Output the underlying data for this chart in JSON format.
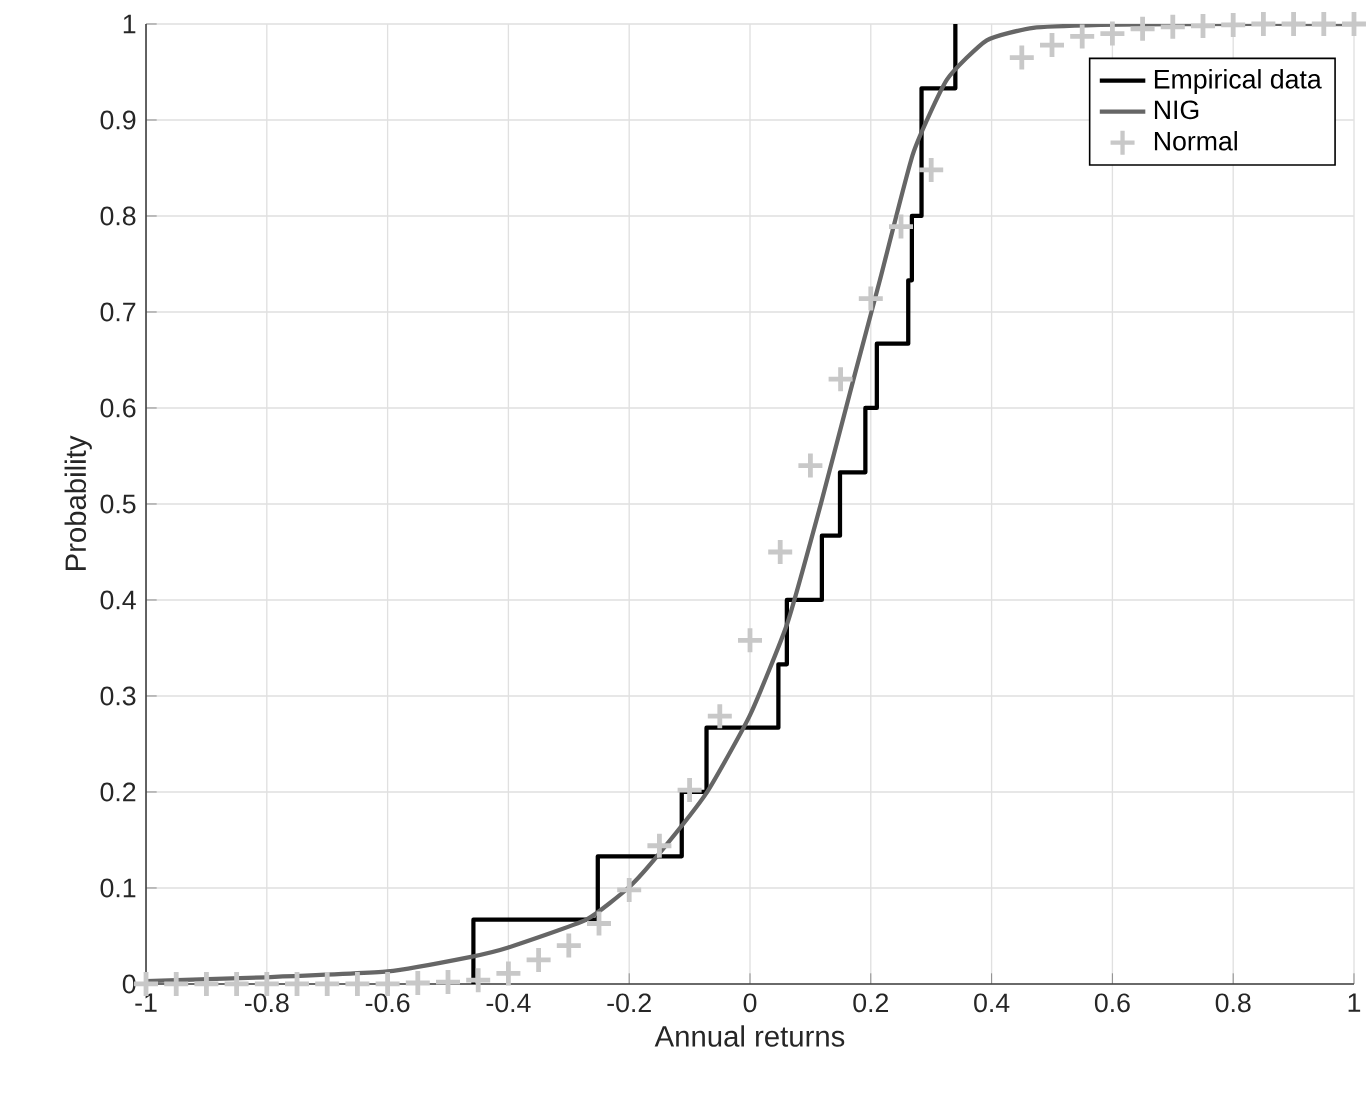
{
  "chart_data": {
    "type": "line",
    "xlabel": "Annual returns",
    "ylabel": "Probability",
    "xlim": [
      -1,
      1
    ],
    "ylim": [
      0,
      1
    ],
    "xticks": [
      -1,
      -0.8,
      -0.6,
      -0.4,
      -0.2,
      0,
      0.2,
      0.4,
      0.6,
      0.8,
      1
    ],
    "yticks": [
      0,
      0.1,
      0.2,
      0.3,
      0.4,
      0.5,
      0.6,
      0.7,
      0.8,
      0.9,
      1
    ],
    "grid": true,
    "legend": "top right",
    "series": [
      {
        "name": "Empirical data",
        "type": "step",
        "color": "#000000",
        "marker": "none",
        "x": [
          -0.458,
          -0.458,
          -0.252,
          -0.113,
          -0.072,
          0.047,
          0.061,
          0.119,
          0.149,
          0.191,
          0.21,
          0.262,
          0.268,
          0.284,
          0.34
        ],
        "values": [
          0,
          0.067,
          0.133,
          0.2,
          0.267,
          0.333,
          0.4,
          0.467,
          0.533,
          0.6,
          0.667,
          0.733,
          0.8,
          0.933,
          1
        ]
      },
      {
        "name": "NIG",
        "color": "#666666",
        "marker": "none",
        "x": [
          -1,
          -0.8,
          -0.6,
          -0.464,
          -0.4,
          -0.271,
          -0.2,
          -0.15,
          -0.072,
          0,
          0.062,
          0.116,
          0.171,
          0.215,
          0.27,
          0.326,
          0.392,
          0.469,
          0.58,
          0.7,
          1
        ],
        "values": [
          0.003,
          0.007,
          0.013,
          0.028,
          0.038,
          0.067,
          0.101,
          0.136,
          0.199,
          0.28,
          0.376,
          0.497,
          0.629,
          0.733,
          0.865,
          0.942,
          0.983,
          0.996,
          0.999,
          1,
          1
        ]
      },
      {
        "name": "Normal",
        "type": "scatter",
        "color": "#c8c8c8",
        "marker": "cross",
        "x": [
          -1,
          -0.95,
          -0.9,
          -0.85,
          -0.8,
          -0.75,
          -0.7,
          -0.65,
          -0.6,
          -0.55,
          -0.5,
          -0.45,
          -0.4,
          -0.35,
          -0.3,
          -0.25,
          -0.2,
          -0.15,
          -0.1,
          -0.05,
          0,
          0.05,
          0.1,
          0.15,
          0.2,
          0.25,
          0.3,
          0.35,
          0.4,
          0.45,
          0.5,
          0.55,
          0.6,
          0.65,
          0.7,
          0.75,
          0.8,
          0.85,
          0.9,
          0.95,
          1
        ],
        "values": [
          0,
          0,
          0,
          0,
          0,
          0,
          0,
          0,
          0,
          0.001,
          0.002,
          0.004,
          0.011,
          0.025,
          0.04,
          0.063,
          0.098,
          0.144,
          0.202,
          0.279,
          0.358,
          0.45,
          0.54,
          0.63,
          0.714,
          0.789,
          0.848,
          null,
          null,
          0.965,
          0.978,
          0.987,
          0.99,
          0.995,
          0.997,
          0.998,
          0.999,
          1,
          1,
          1,
          1
        ]
      }
    ]
  }
}
